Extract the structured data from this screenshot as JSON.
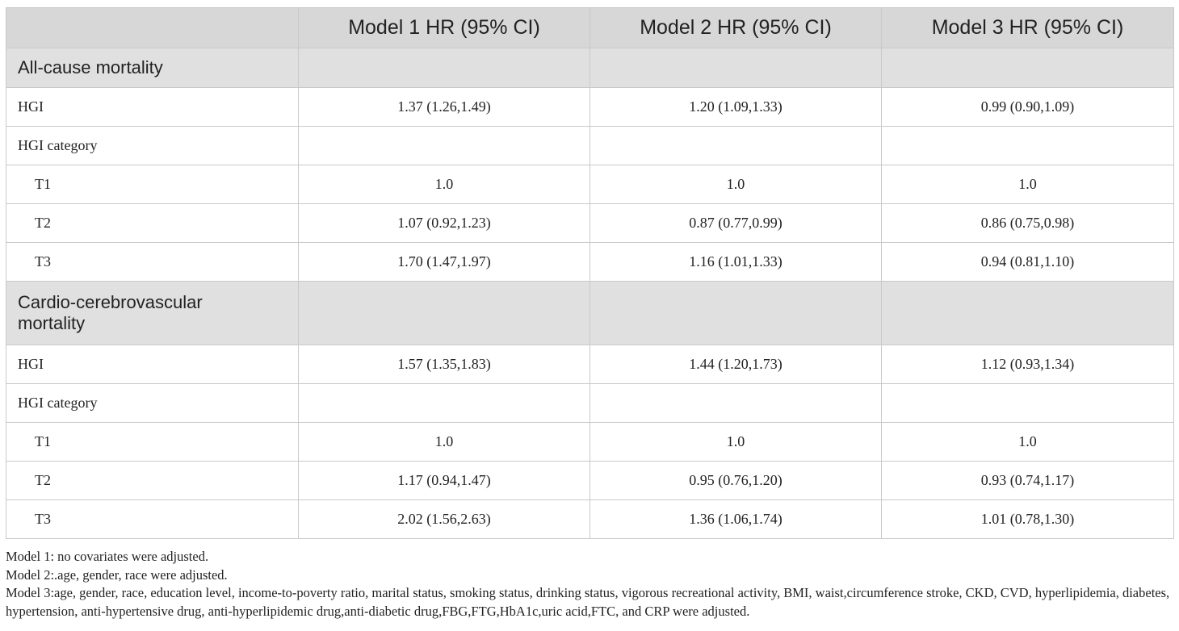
{
  "table": {
    "headers": [
      "",
      "Model 1 HR (95% CI)",
      "Model 2 HR (95% CI)",
      "Model 3 HR (95% CI)"
    ],
    "sections": [
      {
        "title": "All-cause mortality",
        "rows": [
          {
            "label": "HGI",
            "indent": false,
            "values": [
              "1.37 (1.26,1.49)",
              "1.20 (1.09,1.33)",
              "0.99 (0.90,1.09)"
            ]
          },
          {
            "label": "HGI category",
            "indent": false,
            "values": [
              "",
              "",
              ""
            ]
          },
          {
            "label": "T1",
            "indent": true,
            "values": [
              "1.0",
              "1.0",
              "1.0"
            ]
          },
          {
            "label": "T2",
            "indent": true,
            "values": [
              "1.07 (0.92,1.23)",
              "0.87 (0.77,0.99)",
              "0.86 (0.75,0.98)"
            ]
          },
          {
            "label": "T3",
            "indent": true,
            "values": [
              "1.70 (1.47,1.97)",
              "1.16 (1.01,1.33)",
              "0.94 (0.81,1.10)"
            ]
          }
        ]
      },
      {
        "title_lines": [
          "Cardio-cerebrovascular",
          "mortality"
        ],
        "rows": [
          {
            "label": "HGI",
            "indent": false,
            "values": [
              "1.57 (1.35,1.83)",
              "1.44 (1.20,1.73)",
              "1.12 (0.93,1.34)"
            ]
          },
          {
            "label": "HGI category",
            "indent": false,
            "values": [
              "",
              "",
              ""
            ]
          },
          {
            "label": "T1",
            "indent": true,
            "values": [
              "1.0",
              "1.0",
              "1.0"
            ]
          },
          {
            "label": "T2",
            "indent": true,
            "values": [
              "1.17 (0.94,1.47)",
              "0.95 (0.76,1.20)",
              "0.93 (0.74,1.17)"
            ]
          },
          {
            "label": "T3",
            "indent": true,
            "values": [
              "2.02 (1.56,2.63)",
              "1.36 (1.06,1.74)",
              "1.01 (0.78,1.30)"
            ]
          }
        ]
      }
    ]
  },
  "footnotes": [
    "Model 1: no covariates were adjusted.",
    "Model 2:.age, gender, race were adjusted.",
    "Model 3:age, gender, race, education level, income-to-poverty ratio, marital status, smoking status, drinking status, vigorous recreational activity, BMI, waist,circumference stroke, CKD, CVD, hyperlipidemia, diabetes, hypertension, anti-hypertensive drug, anti-hyperlipidemic drug,anti-diabetic drug,FBG,FTG,HbA1c,uric acid,FTC, and CRP were adjusted."
  ]
}
